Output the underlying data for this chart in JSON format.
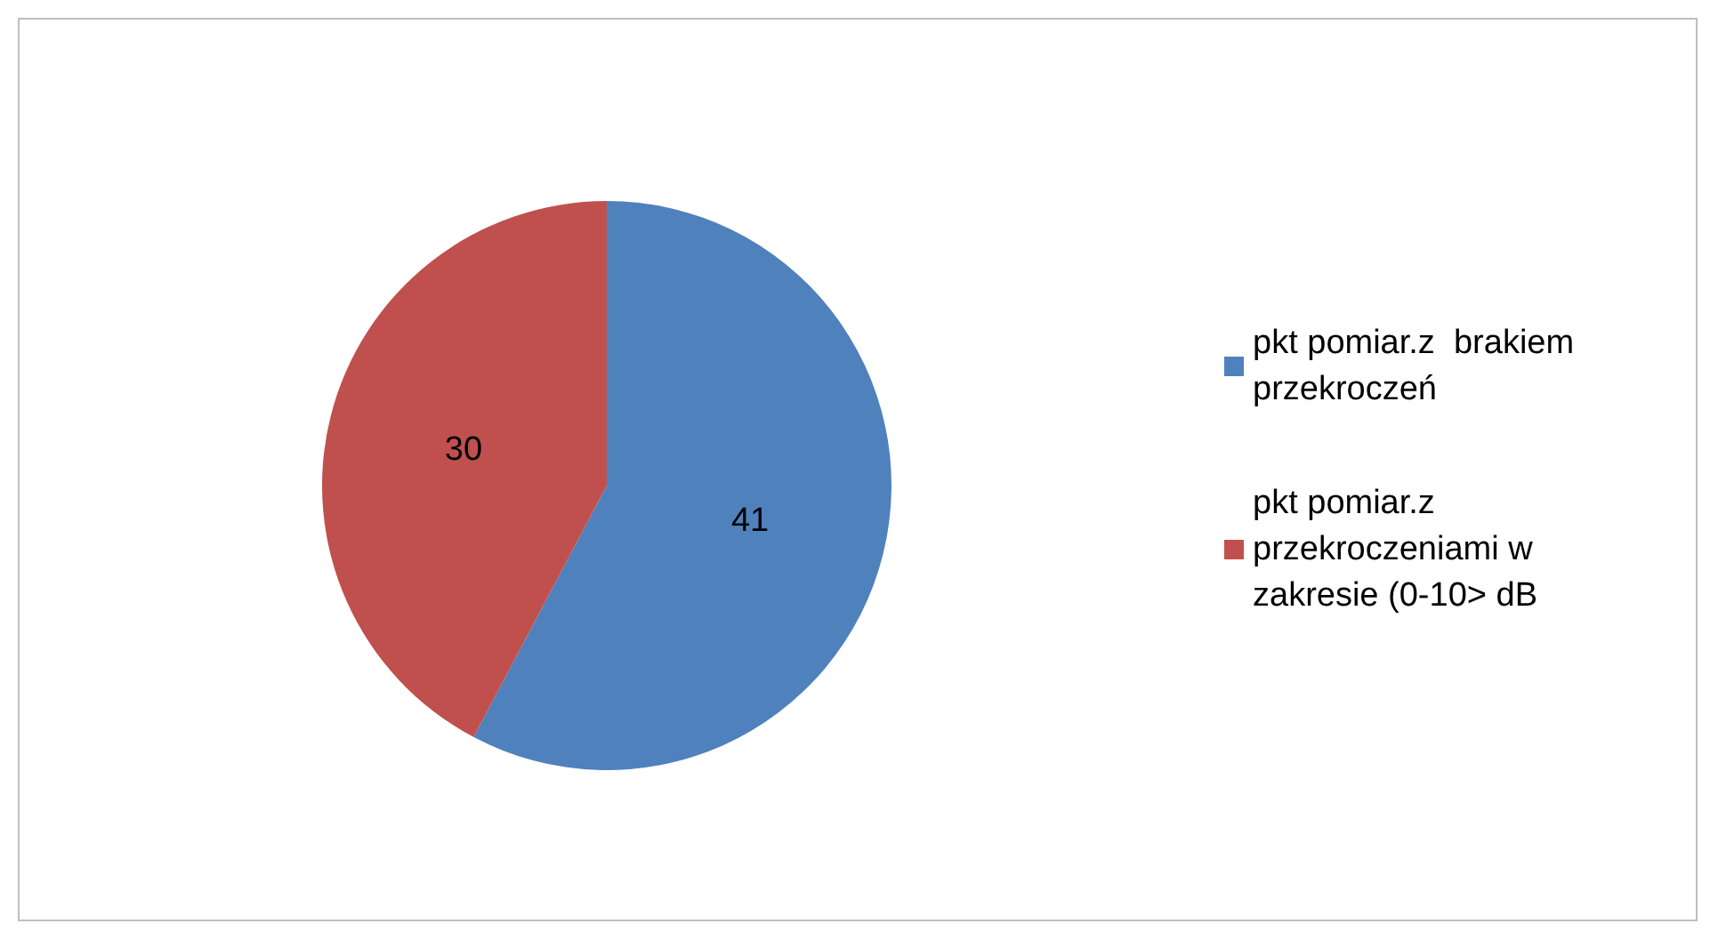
{
  "chart_data": {
    "type": "pie",
    "categories": [
      "pkt pomiar.z  brakiem przekroczeń",
      "pkt pomiar.z przekroczeniami w zakresie (0-10> dB"
    ],
    "values": [
      41,
      30
    ],
    "colors": [
      "#4f81bd",
      "#c0504d"
    ],
    "data_labels": true,
    "legend": "right"
  }
}
